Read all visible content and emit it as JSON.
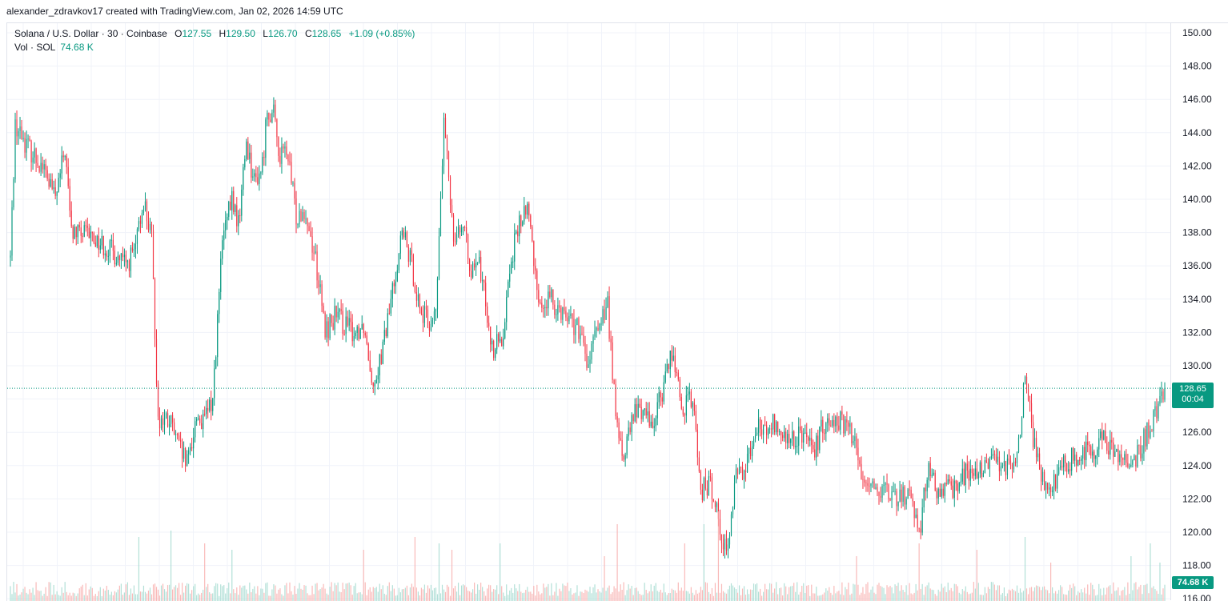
{
  "watermark": "alexander_zdravkov17 created with TradingView.com, Jan 02, 2026 14:59 UTC",
  "legend": {
    "symbol": "Solana / U.S. Dollar · 30 · Coinbase",
    "open_label": "O",
    "open": "127.55",
    "high_label": "H",
    "high": "129.50",
    "low_label": "L",
    "low": "126.70",
    "close_label": "C",
    "close": "128.65",
    "change": "+1.09 (+0.85%)",
    "volume_label": "Vol · SOL",
    "volume": "74.68 K"
  },
  "price_tag": {
    "price": "128.65",
    "countdown": "00:04"
  },
  "volume_tag": "74.68 K",
  "colors": {
    "up": "#089981",
    "down": "#f23645",
    "grid": "#f0f3fa",
    "current_line": "#089981"
  },
  "chart_data": {
    "type": "candlestick",
    "interval": "30",
    "y_axis": {
      "ticks": [
        "150.00",
        "148.00",
        "146.00",
        "144.00",
        "142.00",
        "140.00",
        "138.00",
        "136.00",
        "134.00",
        "132.00",
        "130.00",
        "128.00",
        "126.00",
        "124.00",
        "122.00",
        "120.00",
        "118.00",
        "116.00"
      ],
      "range": [
        116,
        150
      ]
    },
    "last_price": 128.65,
    "price_path": [
      [
        0,
        136.5
      ],
      [
        3,
        144.5
      ],
      [
        12,
        143
      ],
      [
        20,
        142
      ],
      [
        28,
        140
      ],
      [
        34,
        143
      ],
      [
        38,
        138
      ],
      [
        50,
        137.8
      ],
      [
        62,
        137
      ],
      [
        72,
        136
      ],
      [
        78,
        137
      ],
      [
        83,
        140
      ],
      [
        88,
        137.5
      ],
      [
        92,
        126.8
      ],
      [
        100,
        126.5
      ],
      [
        105,
        125
      ],
      [
        110,
        124
      ],
      [
        116,
        127
      ],
      [
        120,
        126.5
      ],
      [
        126,
        128
      ],
      [
        132,
        137.5
      ],
      [
        138,
        140
      ],
      [
        142,
        138.5
      ],
      [
        147,
        143.5
      ],
      [
        152,
        141
      ],
      [
        157,
        142
      ],
      [
        160,
        145.5
      ],
      [
        164,
        145
      ],
      [
        168,
        142.5
      ],
      [
        172,
        143
      ],
      [
        178,
        139
      ],
      [
        183,
        139.5
      ],
      [
        190,
        136.5
      ],
      [
        196,
        132
      ],
      [
        202,
        133
      ],
      [
        208,
        132.5
      ],
      [
        214,
        132
      ],
      [
        220,
        132.5
      ],
      [
        226,
        129
      ],
      [
        232,
        131
      ],
      [
        238,
        134.5
      ],
      [
        244,
        138
      ],
      [
        250,
        136
      ],
      [
        255,
        133.5
      ],
      [
        260,
        132.5
      ],
      [
        265,
        133
      ],
      [
        270,
        144.5
      ],
      [
        276,
        138
      ],
      [
        281,
        138.5
      ],
      [
        288,
        135.5
      ],
      [
        292,
        136
      ],
      [
        296,
        134
      ],
      [
        300,
        131
      ],
      [
        306,
        131.5
      ],
      [
        312,
        136.5
      ],
      [
        317,
        138.5
      ],
      [
        322,
        139.5
      ],
      [
        330,
        133.5
      ],
      [
        336,
        134
      ],
      [
        342,
        133.5
      ],
      [
        348,
        133
      ],
      [
        354,
        132
      ],
      [
        360,
        130
      ],
      [
        366,
        132.5
      ],
      [
        372,
        133.5
      ],
      [
        378,
        126
      ],
      [
        382,
        124.5
      ],
      [
        388,
        127
      ],
      [
        394,
        127.5
      ],
      [
        400,
        126.5
      ],
      [
        406,
        128.5
      ],
      [
        412,
        131
      ],
      [
        418,
        127.5
      ],
      [
        425,
        128
      ],
      [
        430,
        122.5
      ],
      [
        436,
        122.8
      ],
      [
        441,
        121
      ],
      [
        446,
        118.5
      ],
      [
        452,
        123.5
      ],
      [
        458,
        124
      ],
      [
        464,
        126.5
      ],
      [
        470,
        126
      ],
      [
        476,
        126.5
      ],
      [
        482,
        125.5
      ],
      [
        488,
        125.5
      ],
      [
        494,
        126
      ],
      [
        500,
        124.5
      ],
      [
        506,
        126.5
      ],
      [
        512,
        127
      ],
      [
        518,
        126.5
      ],
      [
        524,
        126
      ],
      [
        530,
        123.5
      ],
      [
        536,
        123
      ],
      [
        542,
        122.5
      ],
      [
        548,
        122
      ],
      [
        554,
        122
      ],
      [
        560,
        122.5
      ],
      [
        566,
        120
      ],
      [
        572,
        124
      ],
      [
        578,
        122
      ],
      [
        584,
        122.5
      ],
      [
        590,
        123
      ],
      [
        596,
        123.5
      ],
      [
        602,
        123.5
      ],
      [
        608,
        124
      ],
      [
        614,
        124.5
      ],
      [
        620,
        124
      ],
      [
        626,
        123.5
      ],
      [
        632,
        129.5
      ],
      [
        638,
        125
      ],
      [
        644,
        123
      ],
      [
        650,
        123
      ],
      [
        656,
        124
      ],
      [
        662,
        124.5
      ],
      [
        668,
        125
      ],
      [
        674,
        125
      ],
      [
        680,
        125.5
      ],
      [
        686,
        125
      ],
      [
        692,
        124.5
      ],
      [
        698,
        124
      ],
      [
        704,
        125
      ],
      [
        710,
        126.5
      ],
      [
        716,
        128
      ],
      [
        720,
        128.7
      ]
    ],
    "n_candles": 720,
    "volume_spikes": [
      [
        80,
        0.5
      ],
      [
        100,
        0.55
      ],
      [
        121,
        0.45
      ],
      [
        138,
        0.4
      ],
      [
        220,
        0.4
      ],
      [
        252,
        0.5
      ],
      [
        267,
        0.45
      ],
      [
        275,
        0.4
      ],
      [
        305,
        0.45
      ],
      [
        370,
        0.35
      ],
      [
        378,
        0.6
      ],
      [
        420,
        0.45
      ],
      [
        432,
        0.6
      ],
      [
        441,
        0.7
      ],
      [
        527,
        0.35
      ],
      [
        566,
        0.45
      ],
      [
        602,
        0.4
      ],
      [
        632,
        0.5
      ],
      [
        648,
        0.3
      ],
      [
        698,
        0.35
      ],
      [
        710,
        0.45
      ],
      [
        716,
        0.3
      ]
    ]
  }
}
